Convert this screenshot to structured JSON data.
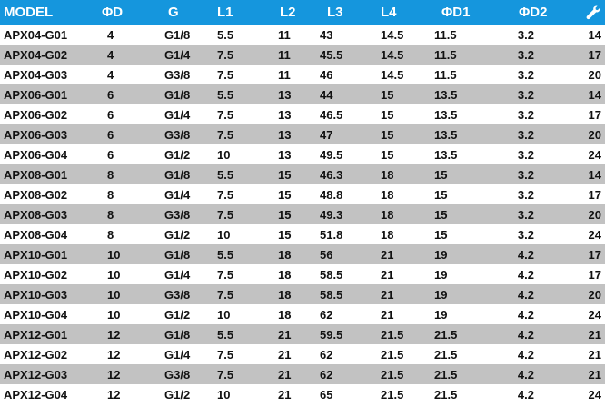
{
  "table": {
    "headers": [
      "MODEL",
      "ΦD",
      "G",
      "L1",
      "L2",
      "L3",
      "L4",
      "ΦD1",
      "ΦD2",
      ""
    ],
    "last_header_icon": "wrench-icon",
    "colors": {
      "header_bg": "#1596dd",
      "header_text": "#ffffff",
      "stripe": "#c2c2c2"
    },
    "rows": [
      [
        "APX04-G01",
        "4",
        "G1/8",
        "5.5",
        "11",
        "43",
        "14.5",
        "11.5",
        "3.2",
        "14"
      ],
      [
        "APX04-G02",
        "4",
        "G1/4",
        "7.5",
        "11",
        "45.5",
        "14.5",
        "11.5",
        "3.2",
        "17"
      ],
      [
        "APX04-G03",
        "4",
        "G3/8",
        "7.5",
        "11",
        "46",
        "14.5",
        "11.5",
        "3.2",
        "20"
      ],
      [
        "APX06-G01",
        "6",
        "G1/8",
        "5.5",
        "13",
        "44",
        "15",
        "13.5",
        "3.2",
        "14"
      ],
      [
        "APX06-G02",
        "6",
        "G1/4",
        "7.5",
        "13",
        "46.5",
        "15",
        "13.5",
        "3.2",
        "17"
      ],
      [
        "APX06-G03",
        "6",
        "G3/8",
        "7.5",
        "13",
        "47",
        "15",
        "13.5",
        "3.2",
        "20"
      ],
      [
        "APX06-G04",
        "6",
        "G1/2",
        "10",
        "13",
        "49.5",
        "15",
        "13.5",
        "3.2",
        "24"
      ],
      [
        "APX08-G01",
        "8",
        "G1/8",
        "5.5",
        "15",
        "46.3",
        "18",
        "15",
        "3.2",
        "14"
      ],
      [
        "APX08-G02",
        "8",
        "G1/4",
        "7.5",
        "15",
        "48.8",
        "18",
        "15",
        "3.2",
        "17"
      ],
      [
        "APX08-G03",
        "8",
        "G3/8",
        "7.5",
        "15",
        "49.3",
        "18",
        "15",
        "3.2",
        "20"
      ],
      [
        "APX08-G04",
        "8",
        "G1/2",
        "10",
        "15",
        "51.8",
        "18",
        "15",
        "3.2",
        "24"
      ],
      [
        "APX10-G01",
        "10",
        "G1/8",
        "5.5",
        "18",
        "56",
        "21",
        "19",
        "4.2",
        "17"
      ],
      [
        "APX10-G02",
        "10",
        "G1/4",
        "7.5",
        "18",
        "58.5",
        "21",
        "19",
        "4.2",
        "17"
      ],
      [
        "APX10-G03",
        "10",
        "G3/8",
        "7.5",
        "18",
        "58.5",
        "21",
        "19",
        "4.2",
        "20"
      ],
      [
        "APX10-G04",
        "10",
        "G1/2",
        "10",
        "18",
        "62",
        "21",
        "19",
        "4.2",
        "24"
      ],
      [
        "APX12-G01",
        "12",
        "G1/8",
        "5.5",
        "21",
        "59.5",
        "21.5",
        "21.5",
        "4.2",
        "21"
      ],
      [
        "APX12-G02",
        "12",
        "G1/4",
        "7.5",
        "21",
        "62",
        "21.5",
        "21.5",
        "4.2",
        "21"
      ],
      [
        "APX12-G03",
        "12",
        "G3/8",
        "7.5",
        "21",
        "62",
        "21.5",
        "21.5",
        "4.2",
        "21"
      ],
      [
        "APX12-G04",
        "12",
        "G1/2",
        "10",
        "21",
        "65",
        "21.5",
        "21.5",
        "4.2",
        "24"
      ]
    ]
  }
}
